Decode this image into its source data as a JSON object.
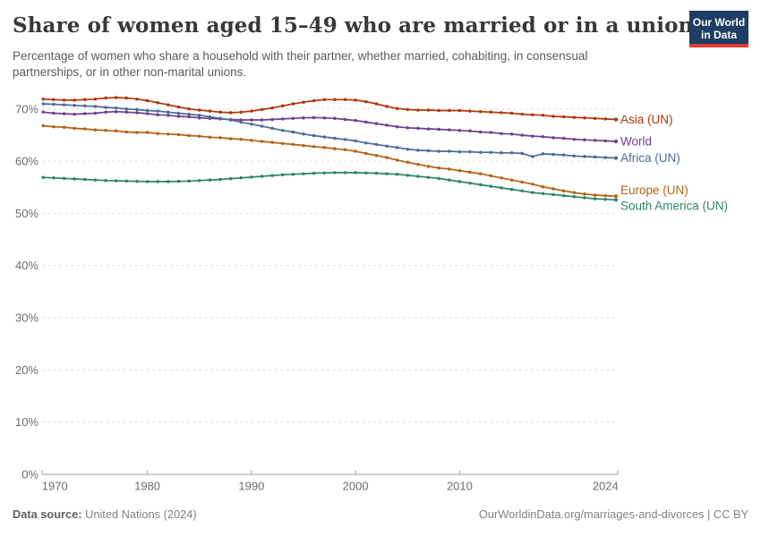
{
  "header": {
    "title": "Share of women aged 15–49 who are married or in a union",
    "subtitle": "Percentage of women who share a household with their partner, whether married, cohabiting, in consensual partnerships, or in other non-marital unions.",
    "logo": {
      "line1": "Our World",
      "line2": "in Data",
      "bg_color": "#1d3d63",
      "accent_color": "#e0392f"
    }
  },
  "chart_data": {
    "type": "line",
    "title": "Share of women aged 15–49 who are married or in a union",
    "xlabel": "",
    "ylabel": "",
    "grid": "horizontal-dashed",
    "legend_position": "right-end-labels",
    "ylim": [
      0,
      72.5
    ],
    "y_ticks": [
      0,
      10,
      20,
      30,
      40,
      50,
      60,
      70
    ],
    "y_tick_suffix": "%",
    "x_ticks": [
      {
        "label": "1970",
        "year": 1970
      },
      {
        "label": "1980",
        "year": 1980
      },
      {
        "label": "1990",
        "year": 1990
      },
      {
        "label": "2000",
        "year": 2000
      },
      {
        "label": "2010",
        "year": 2010
      },
      {
        "label": "2024",
        "year": 2024
      }
    ],
    "years": [
      1970,
      1971,
      1972,
      1973,
      1974,
      1975,
      1976,
      1977,
      1978,
      1979,
      1980,
      1981,
      1982,
      1983,
      1984,
      1985,
      1986,
      1987,
      1988,
      1989,
      1990,
      1991,
      1992,
      1993,
      1994,
      1995,
      1996,
      1997,
      1998,
      1999,
      2000,
      2001,
      2002,
      2003,
      2004,
      2005,
      2006,
      2007,
      2008,
      2009,
      2010,
      2011,
      2012,
      2013,
      2014,
      2015,
      2016,
      2017,
      2018,
      2019,
      2020,
      2021,
      2022,
      2023,
      2024
    ],
    "series": [
      {
        "name": "Asia (UN)",
        "color": "#b13507",
        "values": [
          71.9,
          71.8,
          71.7,
          71.7,
          71.8,
          71.9,
          72.1,
          72.2,
          72.1,
          71.9,
          71.6,
          71.2,
          70.8,
          70.4,
          70.0,
          69.8,
          69.6,
          69.4,
          69.3,
          69.4,
          69.6,
          69.9,
          70.2,
          70.6,
          71.0,
          71.3,
          71.6,
          71.8,
          71.8,
          71.8,
          71.7,
          71.4,
          71.0,
          70.5,
          70.1,
          69.9,
          69.8,
          69.8,
          69.7,
          69.7,
          69.7,
          69.6,
          69.5,
          69.4,
          69.3,
          69.2,
          69.0,
          68.9,
          68.8,
          68.6,
          68.5,
          68.4,
          68.3,
          68.2,
          68.1
        ]
      },
      {
        "name": "World",
        "color": "#6d3e91",
        "values": [
          69.4,
          69.2,
          69.1,
          69.0,
          69.1,
          69.2,
          69.4,
          69.5,
          69.4,
          69.3,
          69.1,
          68.9,
          68.8,
          68.6,
          68.5,
          68.3,
          68.2,
          68.1,
          68.0,
          67.9,
          67.9,
          67.9,
          68.0,
          68.1,
          68.2,
          68.3,
          68.35,
          68.3,
          68.2,
          68.0,
          67.8,
          67.5,
          67.2,
          66.9,
          66.6,
          66.4,
          66.3,
          66.2,
          66.1,
          66.0,
          65.9,
          65.8,
          65.6,
          65.5,
          65.3,
          65.2,
          65.0,
          64.8,
          64.7,
          64.5,
          64.4,
          64.2,
          64.1,
          64.0,
          63.9
        ]
      },
      {
        "name": "Africa (UN)",
        "color": "#4c6a9c",
        "values": [
          71.0,
          70.9,
          70.8,
          70.7,
          70.6,
          70.5,
          70.3,
          70.2,
          70.0,
          69.9,
          69.7,
          69.6,
          69.4,
          69.2,
          69.0,
          68.8,
          68.5,
          68.2,
          67.9,
          67.5,
          67.1,
          66.7,
          66.3,
          65.9,
          65.6,
          65.2,
          64.9,
          64.65,
          64.4,
          64.15,
          63.9,
          63.5,
          63.2,
          62.9,
          62.6,
          62.3,
          62.1,
          62.0,
          61.9,
          61.9,
          61.8,
          61.8,
          61.7,
          61.7,
          61.6,
          61.6,
          61.5,
          60.9,
          61.4,
          61.3,
          61.2,
          61.0,
          60.9,
          60.8,
          60.7
        ]
      },
      {
        "name": "Europe (UN)",
        "color": "#b16214",
        "values": [
          66.8,
          66.6,
          66.5,
          66.3,
          66.2,
          66.0,
          65.9,
          65.8,
          65.6,
          65.5,
          65.5,
          65.3,
          65.2,
          65.1,
          64.9,
          64.8,
          64.6,
          64.5,
          64.3,
          64.2,
          64.0,
          63.8,
          63.6,
          63.4,
          63.2,
          63.0,
          62.8,
          62.6,
          62.4,
          62.2,
          61.9,
          61.5,
          61.1,
          60.7,
          60.2,
          59.8,
          59.4,
          59.0,
          58.7,
          58.5,
          58.2,
          57.9,
          57.6,
          57.2,
          56.8,
          56.4,
          56.0,
          55.6,
          55.1,
          54.7,
          54.3,
          54.0,
          53.7,
          53.5,
          53.4
        ]
      },
      {
        "name": "South America (UN)",
        "color": "#2c8465",
        "values": [
          56.9,
          56.8,
          56.7,
          56.6,
          56.5,
          56.4,
          56.3,
          56.25,
          56.2,
          56.15,
          56.1,
          56.1,
          56.1,
          56.15,
          56.2,
          56.3,
          56.4,
          56.5,
          56.65,
          56.8,
          56.95,
          57.1,
          57.25,
          57.4,
          57.5,
          57.6,
          57.7,
          57.75,
          57.8,
          57.8,
          57.8,
          57.75,
          57.7,
          57.6,
          57.5,
          57.3,
          57.1,
          56.9,
          56.7,
          56.4,
          56.1,
          55.8,
          55.5,
          55.2,
          54.9,
          54.6,
          54.3,
          54.0,
          53.8,
          53.6,
          53.4,
          53.2,
          53.0,
          52.8,
          52.7
        ]
      }
    ]
  },
  "footer": {
    "source_label": "Data source:",
    "source_value": "United Nations (2024)",
    "credit": "OurWorldinData.org/marriages-and-divorces | CC BY"
  }
}
